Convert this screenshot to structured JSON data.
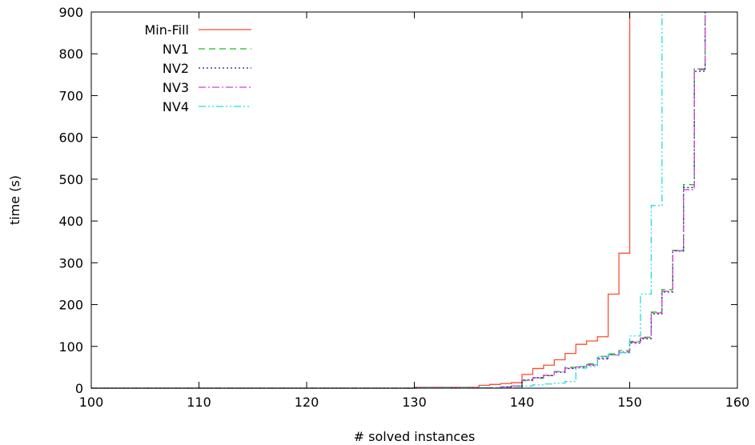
{
  "chart_data": {
    "type": "line",
    "title": "",
    "xlabel": "# solved instances",
    "ylabel": "time (s)",
    "xlim": [
      100,
      160
    ],
    "ylim": [
      0,
      900
    ],
    "x_ticks": [
      100,
      110,
      120,
      130,
      140,
      150,
      160
    ],
    "y_ticks": [
      0,
      100,
      200,
      300,
      400,
      500,
      600,
      700,
      800,
      900
    ],
    "grid": false,
    "legend_position": "top-left",
    "step": true,
    "series": [
      {
        "name": "Min-Fill",
        "color": "#ff4d2e",
        "dash": "solid",
        "points": [
          [
            100,
            0
          ],
          [
            130,
            2
          ],
          [
            136,
            7
          ],
          [
            137,
            9
          ],
          [
            138,
            11
          ],
          [
            139,
            13
          ],
          [
            140,
            33
          ],
          [
            141,
            47
          ],
          [
            142,
            55
          ],
          [
            143,
            68
          ],
          [
            144,
            83
          ],
          [
            145,
            105
          ],
          [
            146,
            113
          ],
          [
            147,
            123
          ],
          [
            148,
            225
          ],
          [
            149,
            323
          ],
          [
            150,
            900
          ]
        ]
      },
      {
        "name": "NV1",
        "color": "#22bb22",
        "dash": "dashed",
        "points": [
          [
            100,
            0
          ],
          [
            130,
            1
          ],
          [
            138,
            3
          ],
          [
            139,
            5
          ],
          [
            140,
            18
          ],
          [
            141,
            24
          ],
          [
            142,
            30
          ],
          [
            143,
            40
          ],
          [
            144,
            50
          ],
          [
            145,
            52
          ],
          [
            146,
            58
          ],
          [
            147,
            76
          ],
          [
            148,
            82
          ],
          [
            149,
            90
          ],
          [
            150,
            112
          ],
          [
            151,
            122
          ],
          [
            152,
            182
          ],
          [
            153,
            236
          ],
          [
            154,
            330
          ],
          [
            155,
            487
          ],
          [
            156,
            762
          ],
          [
            157,
            900
          ]
        ]
      },
      {
        "name": "NV2",
        "color": "#1a1a8f",
        "dash": "dotted",
        "points": [
          [
            100,
            0
          ],
          [
            130,
            1
          ],
          [
            138,
            3
          ],
          [
            139,
            5
          ],
          [
            140,
            20
          ],
          [
            141,
            25
          ],
          [
            142,
            30
          ],
          [
            143,
            38
          ],
          [
            144,
            47
          ],
          [
            145,
            50
          ],
          [
            146,
            55
          ],
          [
            147,
            70
          ],
          [
            148,
            80
          ],
          [
            149,
            85
          ],
          [
            150,
            108
          ],
          [
            151,
            118
          ],
          [
            152,
            178
          ],
          [
            153,
            230
          ],
          [
            154,
            328
          ],
          [
            155,
            480
          ],
          [
            156,
            758
          ],
          [
            157,
            900
          ]
        ]
      },
      {
        "name": "NV3",
        "color": "#d63cd6",
        "dash": "dashdot",
        "points": [
          [
            100,
            0
          ],
          [
            130,
            1
          ],
          [
            138,
            3
          ],
          [
            139,
            5
          ],
          [
            140,
            19
          ],
          [
            141,
            25
          ],
          [
            142,
            31
          ],
          [
            143,
            39
          ],
          [
            144,
            48
          ],
          [
            145,
            51
          ],
          [
            146,
            56
          ],
          [
            147,
            72
          ],
          [
            148,
            79
          ],
          [
            149,
            87
          ],
          [
            150,
            110
          ],
          [
            151,
            120
          ],
          [
            152,
            180
          ],
          [
            153,
            232
          ],
          [
            154,
            329
          ],
          [
            155,
            475
          ],
          [
            156,
            764
          ],
          [
            157,
            900
          ]
        ]
      },
      {
        "name": "NV4",
        "color": "#22dddd",
        "dash": "dashdotdot",
        "points": [
          [
            100,
            0
          ],
          [
            130,
            1
          ],
          [
            140,
            5
          ],
          [
            141,
            8
          ],
          [
            142,
            10
          ],
          [
            143,
            12
          ],
          [
            144,
            16
          ],
          [
            145,
            48
          ],
          [
            146,
            52
          ],
          [
            147,
            75
          ],
          [
            148,
            80
          ],
          [
            149,
            85
          ],
          [
            150,
            125
          ],
          [
            151,
            225
          ],
          [
            152,
            437
          ],
          [
            153,
            900
          ]
        ]
      }
    ]
  }
}
